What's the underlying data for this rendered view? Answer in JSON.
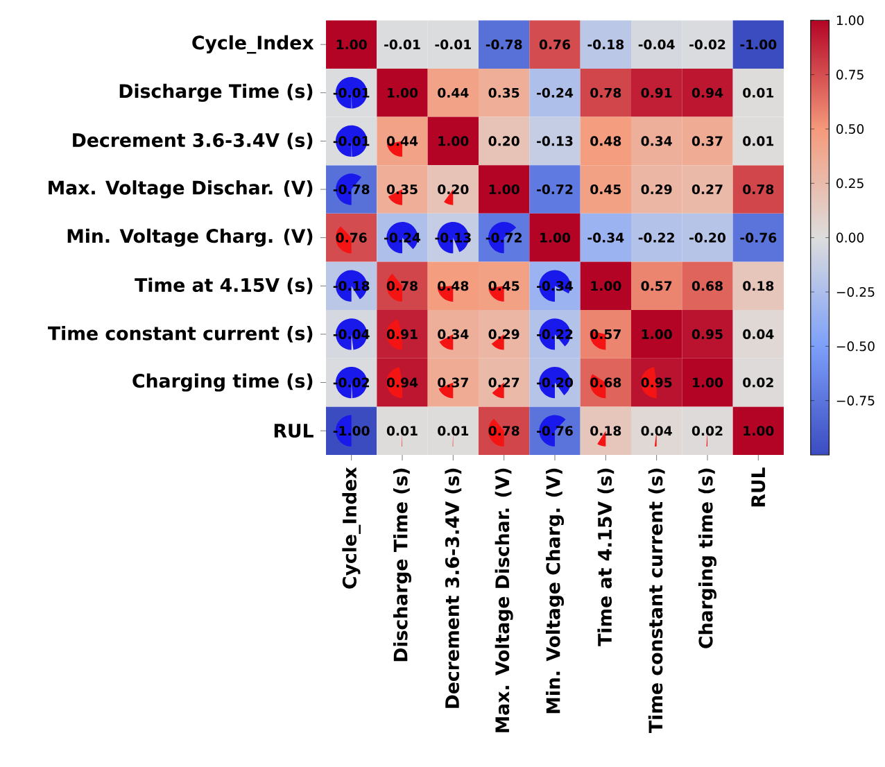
{
  "chart_data": {
    "type": "heatmap",
    "categories": [
      "Cycle_Index",
      "Discharge Time (s)",
      "Decrement 3.6-3.4V (s)",
      "Max. Voltage Dischar. (V)",
      "Min. Voltage Charg. (V)",
      "Time at 4.15V (s)",
      "Time constant current (s)",
      "Charging time (s)",
      "RUL"
    ],
    "y_categories": [
      "Cycle_Index",
      "Discharge Time (s)",
      "Decrement 3.6-3.4V (s)",
      "Max. Voltage Dischar. (V)",
      "Min. Voltage Charg. (V)",
      "Time at 4.15V (s)",
      "Time constant current (s)",
      "Charging time (s)",
      "RUL"
    ],
    "cells": [
      [
        1.0,
        -0.01,
        -0.01,
        -0.78,
        0.76,
        -0.18,
        -0.04,
        -0.02,
        -1.0
      ],
      [
        -0.01,
        1.0,
        0.44,
        0.35,
        -0.24,
        0.78,
        0.91,
        0.94,
        0.01
      ],
      [
        -0.01,
        0.44,
        1.0,
        0.2,
        -0.13,
        0.48,
        0.34,
        0.37,
        0.01
      ],
      [
        -0.78,
        0.35,
        0.2,
        1.0,
        -0.72,
        0.45,
        0.29,
        0.27,
        0.78
      ],
      [
        0.76,
        -0.24,
        -0.13,
        -0.72,
        1.0,
        -0.34,
        -0.22,
        -0.2,
        -0.76
      ],
      [
        -0.18,
        0.78,
        0.48,
        0.45,
        -0.34,
        1.0,
        0.57,
        0.68,
        0.18
      ],
      [
        -0.04,
        0.91,
        0.34,
        0.29,
        -0.22,
        0.57,
        1.0,
        0.95,
        0.04
      ],
      [
        -0.02,
        0.94,
        0.37,
        0.27,
        -0.2,
        0.68,
        0.95,
        1.0,
        0.02
      ],
      [
        -1.0,
        0.01,
        0.01,
        0.78,
        -0.76,
        0.18,
        0.04,
        0.02,
        1.0
      ]
    ],
    "cell_labels": [
      [
        "1.00",
        "-0.01",
        "-0.01",
        "-0.78",
        "0.76",
        "-0.18",
        "-0.04",
        "-0.02",
        "-1.00"
      ],
      [
        "-0.01",
        "1.00",
        "0.44",
        "0.35",
        "-0.24",
        "0.78",
        "0.91",
        "0.94",
        "0.01"
      ],
      [
        "-0.01",
        "0.44",
        "1.00",
        "0.20",
        "-0.13",
        "0.48",
        "0.34",
        "0.37",
        "0.01"
      ],
      [
        "-0.78",
        "0.35",
        "0.20",
        "1.00",
        "-0.72",
        "0.45",
        "0.29",
        "0.27",
        "0.78"
      ],
      [
        "0.76",
        "-0.24",
        "-0.13",
        "-0.72",
        "1.00",
        "-0.34",
        "-0.22",
        "-0.20",
        "-0.76"
      ],
      [
        "-0.18",
        "0.78",
        "0.48",
        "0.45",
        "-0.34",
        "1.00",
        "0.57",
        "0.68",
        "0.18"
      ],
      [
        "-0.04",
        "0.91",
        "0.34",
        "0.29",
        "-0.22",
        "0.57",
        "1.00",
        "0.95",
        "0.04"
      ],
      [
        "-0.02",
        "0.94",
        "0.37",
        "0.27",
        "-0.20",
        "0.68",
        "0.95",
        "1.00",
        "0.02"
      ],
      [
        "-1.00",
        "0.01",
        "0.01",
        "0.78",
        "-0.76",
        "0.18",
        "0.04",
        "0.02",
        "1.00"
      ]
    ],
    "clim": [
      -1,
      1
    ],
    "cticks": [
      {
        "value": 1,
        "label": "1.00"
      },
      {
        "value": 0.75,
        "label": "0.75"
      },
      {
        "value": 0.5,
        "label": "0.50"
      },
      {
        "value": 0.25,
        "label": "0.25"
      },
      {
        "value": 0,
        "label": "0.00"
      },
      {
        "value": -0.25,
        "label": "−0.25"
      },
      {
        "value": -0.5,
        "label": "−0.50"
      },
      {
        "value": -0.75,
        "label": "−0.75"
      }
    ]
  }
}
